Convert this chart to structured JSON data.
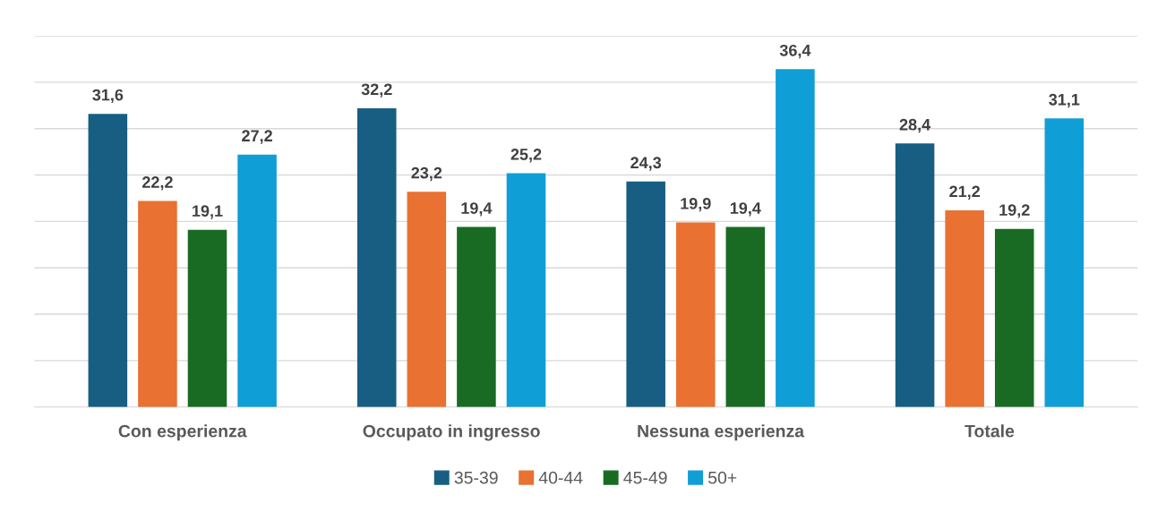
{
  "chart_data": {
    "type": "bar",
    "categories": [
      "Con esperienza",
      "Occupato in ingresso",
      "Nessuna esperienza",
      "Totale"
    ],
    "series": [
      {
        "name": "35-39",
        "color": "#175e82",
        "values": [
          31.6,
          32.2,
          24.3,
          28.4
        ],
        "value_labels": [
          "31,6",
          "32,2",
          "24,3",
          "28,4"
        ]
      },
      {
        "name": "40-44",
        "color": "#e97132",
        "values": [
          22.2,
          23.2,
          19.9,
          21.2
        ],
        "value_labels": [
          "22,2",
          "23,2",
          "19,9",
          "21,2"
        ]
      },
      {
        "name": "45-49",
        "color": "#196b24",
        "values": [
          19.1,
          19.4,
          19.4,
          19.2
        ],
        "value_labels": [
          "19,1",
          "19,4",
          "19,4",
          "19,2"
        ]
      },
      {
        "name": "50+",
        "color": "#0f9ed5",
        "values": [
          27.2,
          25.2,
          36.4,
          31.1
        ],
        "value_labels": [
          "27,2",
          "25,2",
          "36,4",
          "31,1"
        ]
      }
    ],
    "ylim": [
      0,
      40
    ],
    "yticks": [
      {
        "value": 0,
        "label": null
      },
      {
        "value": 5,
        "label": null
      },
      {
        "value": 10,
        "label": null
      },
      {
        "value": 15,
        "label": null
      },
      {
        "value": 20,
        "label": null
      },
      {
        "value": 25,
        "label": null
      },
      {
        "value": 30,
        "label": null
      },
      {
        "value": 35,
        "label": null
      },
      {
        "value": 40,
        "label": null
      }
    ],
    "grid": "y",
    "legend": "bottom",
    "tick_labels": "x"
  }
}
